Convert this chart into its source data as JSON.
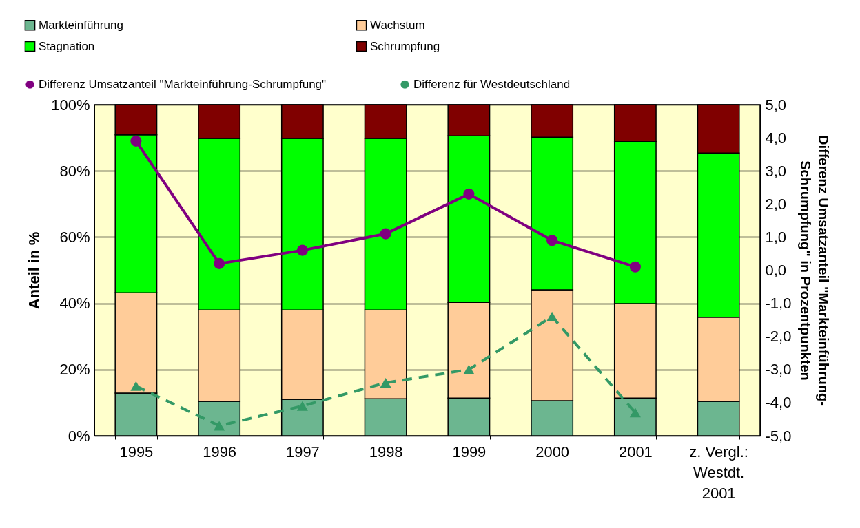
{
  "chart_data": {
    "type": "bar",
    "stacked": true,
    "ylabel": "Anteil in %",
    "y2label": "Differenz Umsatzanteil \"Markteinführung-\nSchrumpfung\" in Prozentpunkten",
    "categories": [
      "1995",
      "1996",
      "1997",
      "1998",
      "1999",
      "2000",
      "2001",
      "z. Vergl.:\nWestdt.\n2001"
    ],
    "series": [
      {
        "name": "Markteinführung",
        "color": "#6cb690",
        "values": [
          12.9,
          10.4,
          11.0,
          11.2,
          11.4,
          10.6,
          11.4,
          10.4
        ]
      },
      {
        "name": "Wachstum",
        "color": "#ffcc99",
        "values": [
          30.3,
          27.6,
          27.0,
          26.8,
          28.9,
          33.5,
          28.5,
          25.4
        ]
      },
      {
        "name": "Stagnation",
        "color": "#00ff00",
        "values": [
          47.7,
          51.8,
          51.8,
          51.8,
          50.3,
          46.1,
          48.9,
          49.6
        ]
      },
      {
        "name": "Schrumpfung",
        "color": "#800000",
        "values": [
          9.1,
          10.2,
          10.2,
          10.2,
          9.4,
          9.8,
          11.2,
          14.6
        ]
      },
      {
        "name": "Differenz Umsatzanteil \"Markteinführung-Schrumpfung\"",
        "type": "line",
        "axis": "y2",
        "color": "#800080",
        "marker": "circle",
        "line_style": "solid",
        "values": [
          3.9,
          0.2,
          0.6,
          1.1,
          2.3,
          0.9,
          0.1,
          null
        ]
      },
      {
        "name": "Differenz für Westdeutschland",
        "type": "line",
        "axis": "y2",
        "color": "#339966",
        "marker": "triangle",
        "line_style": "dashed",
        "values": [
          -3.5,
          -4.7,
          -4.1,
          -3.4,
          -3.0,
          -1.4,
          -4.3,
          null
        ]
      }
    ],
    "ylim": [
      0,
      100
    ],
    "yticks": [
      {
        "value": 0,
        "label": "0%"
      },
      {
        "value": 20,
        "label": "20%"
      },
      {
        "value": 40,
        "label": "40%"
      },
      {
        "value": 60,
        "label": "60%"
      },
      {
        "value": 80,
        "label": "80%"
      },
      {
        "value": 100,
        "label": "100%"
      }
    ],
    "y2lim": [
      -5,
      5
    ],
    "y2ticks": [
      {
        "value": -5,
        "label": "-5,0"
      },
      {
        "value": -4,
        "label": "-4,0"
      },
      {
        "value": -3,
        "label": "-3,0"
      },
      {
        "value": -2,
        "label": "-2,0"
      },
      {
        "value": -1,
        "label": "-1,0"
      },
      {
        "value": 0,
        "label": "0,0"
      },
      {
        "value": 1,
        "label": "1,0"
      },
      {
        "value": 2,
        "label": "2,0"
      },
      {
        "value": 3,
        "label": "3,0"
      },
      {
        "value": 4,
        "label": "4,0"
      },
      {
        "value": 5,
        "label": "5,0"
      }
    ],
    "grid": "y",
    "legend": "top"
  }
}
